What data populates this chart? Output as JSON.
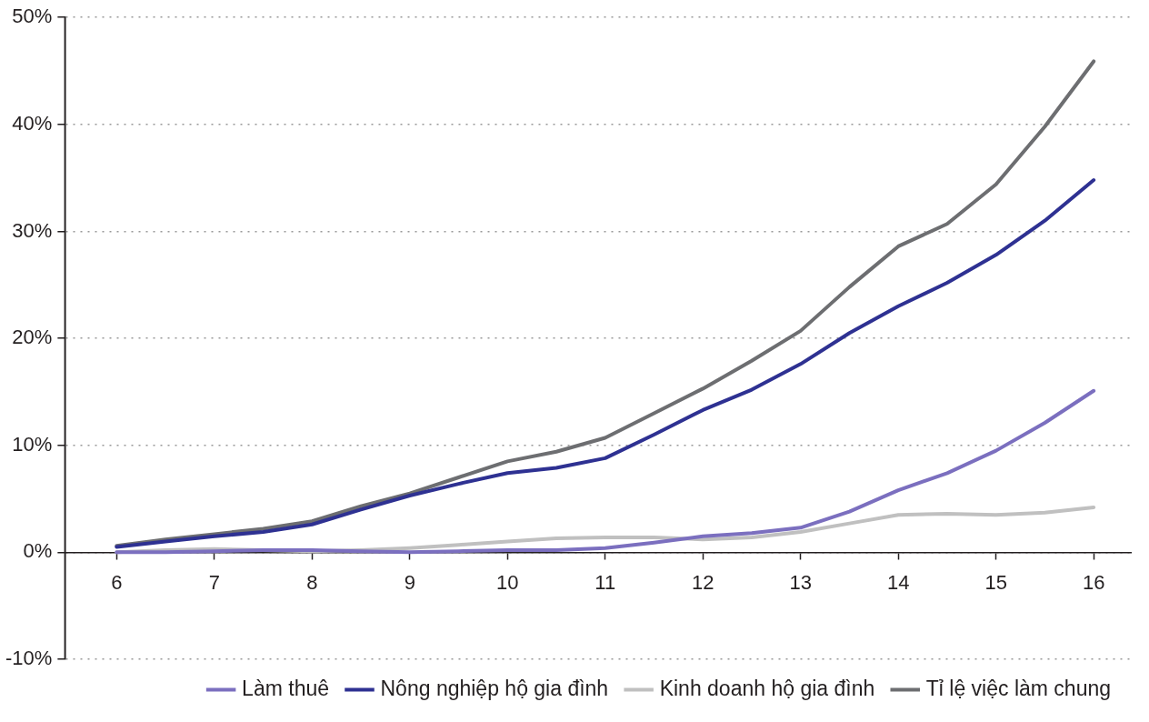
{
  "chart_data": {
    "type": "line",
    "x": [
      6,
      6.5,
      7,
      7.5,
      8,
      8.5,
      9,
      9.5,
      10,
      10.5,
      11,
      11.5,
      12,
      12.5,
      13,
      13.5,
      14,
      14.5,
      15,
      15.5,
      16
    ],
    "series": [
      {
        "name": "Làm thuê",
        "color": "#7b6fbf",
        "values": [
          0,
          0,
          0.1,
          0.2,
          0.2,
          0.1,
          0,
          0.1,
          0.2,
          0.2,
          0.4,
          0.9,
          1.5,
          1.8,
          2.3,
          3.8,
          5.8,
          7.4,
          9.5,
          12.1,
          15.1
        ]
      },
      {
        "name": "Nông nghiệp hộ gia đình",
        "color": "#2e3192",
        "values": [
          0.5,
          1.0,
          1.5,
          1.9,
          2.6,
          4.0,
          5.3,
          6.4,
          7.4,
          7.9,
          8.8,
          11.0,
          13.3,
          15.2,
          17.6,
          20.5,
          23.0,
          25.2,
          27.8,
          31.0,
          34.8
        ]
      },
      {
        "name": "Kinh doanh hộ gia đình",
        "color": "#c0c0c0",
        "values": [
          0,
          0.2,
          0.3,
          0.2,
          0.1,
          0.2,
          0.4,
          0.7,
          1.0,
          1.3,
          1.4,
          1.4,
          1.2,
          1.4,
          1.9,
          2.7,
          3.5,
          3.6,
          3.5,
          3.7,
          4.2
        ]
      },
      {
        "name": "Tỉ lệ việc làm chung",
        "color": "#6d6e71",
        "values": [
          0.6,
          1.2,
          1.7,
          2.2,
          2.9,
          4.3,
          5.5,
          7.0,
          8.5,
          9.4,
          10.7,
          13.0,
          15.3,
          17.9,
          20.7,
          24.8,
          28.6,
          30.7,
          34.4,
          39.8,
          45.9
        ]
      }
    ],
    "xlim": [
      5.47,
      16.38
    ],
    "xticks": [
      6,
      7,
      8,
      9,
      10,
      11,
      12,
      13,
      14,
      15,
      16
    ],
    "ylim": [
      -10,
      50
    ],
    "yticks": [
      {
        "value": -10,
        "label": "-10%"
      },
      {
        "value": 0,
        "label": "0%"
      },
      {
        "value": 10,
        "label": "10%"
      },
      {
        "value": 20,
        "label": "20%"
      },
      {
        "value": 30,
        "label": "30%"
      },
      {
        "value": 40,
        "label": "40%"
      },
      {
        "value": 50,
        "label": "50%"
      }
    ],
    "grid": "y",
    "legend": "bottom",
    "marker": "none",
    "line_style": "solid"
  }
}
